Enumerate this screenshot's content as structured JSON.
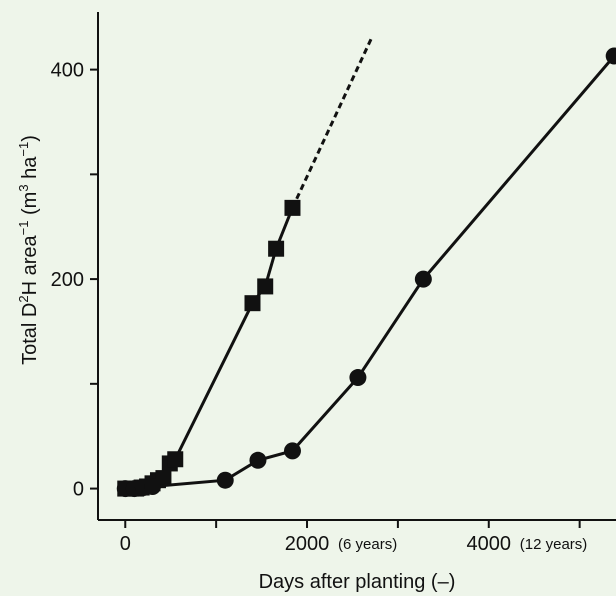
{
  "chart_data": {
    "type": "line",
    "title": "",
    "xlabel": "Days after planting (–)",
    "ylabel": "Total D²H area⁻¹ (m³ ha⁻¹)",
    "ylabel_parts": [
      "Total D",
      "2",
      "H area",
      "−1",
      " (m",
      "3",
      " ha",
      "−1",
      ")"
    ],
    "xlim": [
      -300,
      5400
    ],
    "ylim": [
      -30,
      455
    ],
    "x_ticks": [
      {
        "value": 0,
        "label": "0",
        "note": ""
      },
      {
        "value": 2000,
        "label": "2000",
        "note": "(6 years)"
      },
      {
        "value": 4000,
        "label": "4000",
        "note": "(12 years)"
      }
    ],
    "y_ticks": [
      {
        "value": 0,
        "label": "0"
      },
      {
        "value": 200,
        "label": "200"
      },
      {
        "value": 400,
        "label": "400"
      }
    ],
    "grid": false,
    "legend": "none",
    "series": [
      {
        "marker": "square",
        "x": [
          0,
          60,
          120,
          180,
          240,
          300,
          360,
          420,
          490,
          550,
          1400,
          1540,
          1660,
          1840
        ],
        "y": [
          0,
          0,
          0,
          1,
          2,
          5,
          8,
          10,
          24,
          28,
          177,
          193,
          229,
          268
        ],
        "extrapolation": {
          "x": [
            1840,
            2720
          ],
          "y": [
            268,
            432
          ]
        }
      },
      {
        "marker": "circle",
        "x": [
          0,
          100,
          200,
          300,
          1100,
          1460,
          1840,
          2560,
          3280,
          5380
        ],
        "y": [
          0,
          0,
          1,
          2,
          8,
          27,
          36,
          106,
          200,
          413
        ]
      }
    ]
  }
}
